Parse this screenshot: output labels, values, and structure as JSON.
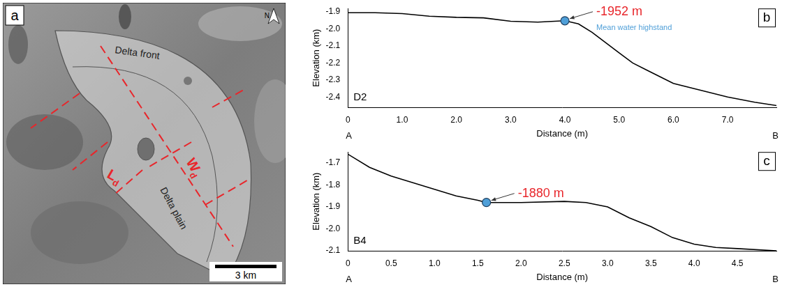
{
  "map_panel": {
    "letter": "a",
    "delta_front": "Delta front",
    "delta_plain": "Delta plain",
    "length": {
      "symbol": "L",
      "subscript": "d"
    },
    "width": {
      "symbol": "W",
      "subscript": "d"
    },
    "scale_bar": "3 km",
    "north": "N"
  },
  "chart_data": [
    {
      "type": "line",
      "panel": "b",
      "profile": "D2",
      "endpoints": [
        "A",
        "B"
      ],
      "x_label": "Distance (m)",
      "y_label": "Elevation (km)",
      "color": "#000000",
      "grid": false,
      "x": [
        0,
        0.5,
        1.0,
        1.5,
        2.0,
        2.5,
        3.0,
        3.5,
        4.0,
        4.25,
        4.5,
        4.75,
        5.0,
        5.25,
        5.5,
        5.75,
        6.0,
        6.5,
        7.0,
        7.5,
        7.9
      ],
      "values": [
        -1.905,
        -1.905,
        -1.91,
        -1.925,
        -1.932,
        -1.935,
        -1.955,
        -1.96,
        -1.952,
        -1.97,
        -2.02,
        -2.08,
        -2.14,
        -2.2,
        -2.24,
        -2.28,
        -2.32,
        -2.36,
        -2.4,
        -2.43,
        -2.45
      ],
      "xlim": [
        0,
        7.9
      ],
      "xticks": [
        0,
        {
          "value": 1,
          "label": "1.0"
        },
        {
          "value": 2,
          "label": "2.0"
        },
        {
          "value": 3,
          "label": "3.0"
        },
        {
          "value": 4,
          "label": "4.0"
        },
        {
          "value": 5,
          "label": "5.0"
        },
        {
          "value": 6,
          "label": "6.0"
        },
        {
          "value": 7,
          "label": "7.0"
        }
      ],
      "ylim": [
        -2.46,
        -1.88
      ],
      "yticks": [
        -1.9,
        {
          "value": -2,
          "label": "-2.0"
        },
        -2.1,
        -2.2,
        -2.3,
        -2.4
      ],
      "highstand": {
        "x": 4.0,
        "y": -1.952,
        "label": "-1952 m",
        "label_color": "#e8262b",
        "note": "Mean water highstand",
        "color": "#4f9fd8",
        "marker": "circle"
      }
    },
    {
      "type": "line",
      "panel": "c",
      "profile": "B4",
      "endpoints": [
        "A",
        "B"
      ],
      "x_label": "Distance (m)",
      "y_label": "Elevation (km)",
      "color": "#000000",
      "grid": false,
      "x": [
        0,
        0.25,
        0.5,
        0.75,
        1.0,
        1.25,
        1.5,
        1.6,
        2.0,
        2.5,
        2.75,
        3.0,
        3.25,
        3.5,
        3.75,
        4.0,
        4.25,
        4.5,
        4.95
      ],
      "values": [
        -1.66,
        -1.72,
        -1.76,
        -1.79,
        -1.82,
        -1.85,
        -1.87,
        -1.88,
        -1.88,
        -1.875,
        -1.88,
        -1.9,
        -1.95,
        -1.99,
        -2.04,
        -2.07,
        -2.085,
        -2.09,
        -2.1
      ],
      "xlim": [
        0,
        4.95
      ],
      "xticks": [
        0,
        0.5,
        {
          "value": 1,
          "label": "1.0"
        },
        1.5,
        {
          "value": 2,
          "label": "2.0"
        },
        2.5,
        {
          "value": 3,
          "label": "3.0"
        },
        3.5,
        {
          "value": 4,
          "label": "4.0"
        },
        4.5
      ],
      "ylim": [
        -2.1,
        -1.65
      ],
      "yticks": [
        -1.7,
        -1.8,
        -1.9,
        {
          "value": -2,
          "label": "-2.0"
        },
        -2.1
      ],
      "highstand": {
        "x": 1.6,
        "y": -1.88,
        "label": "-1880 m",
        "label_color": "#e8262b",
        "color": "#4f9fd8",
        "marker": "circle"
      }
    }
  ]
}
